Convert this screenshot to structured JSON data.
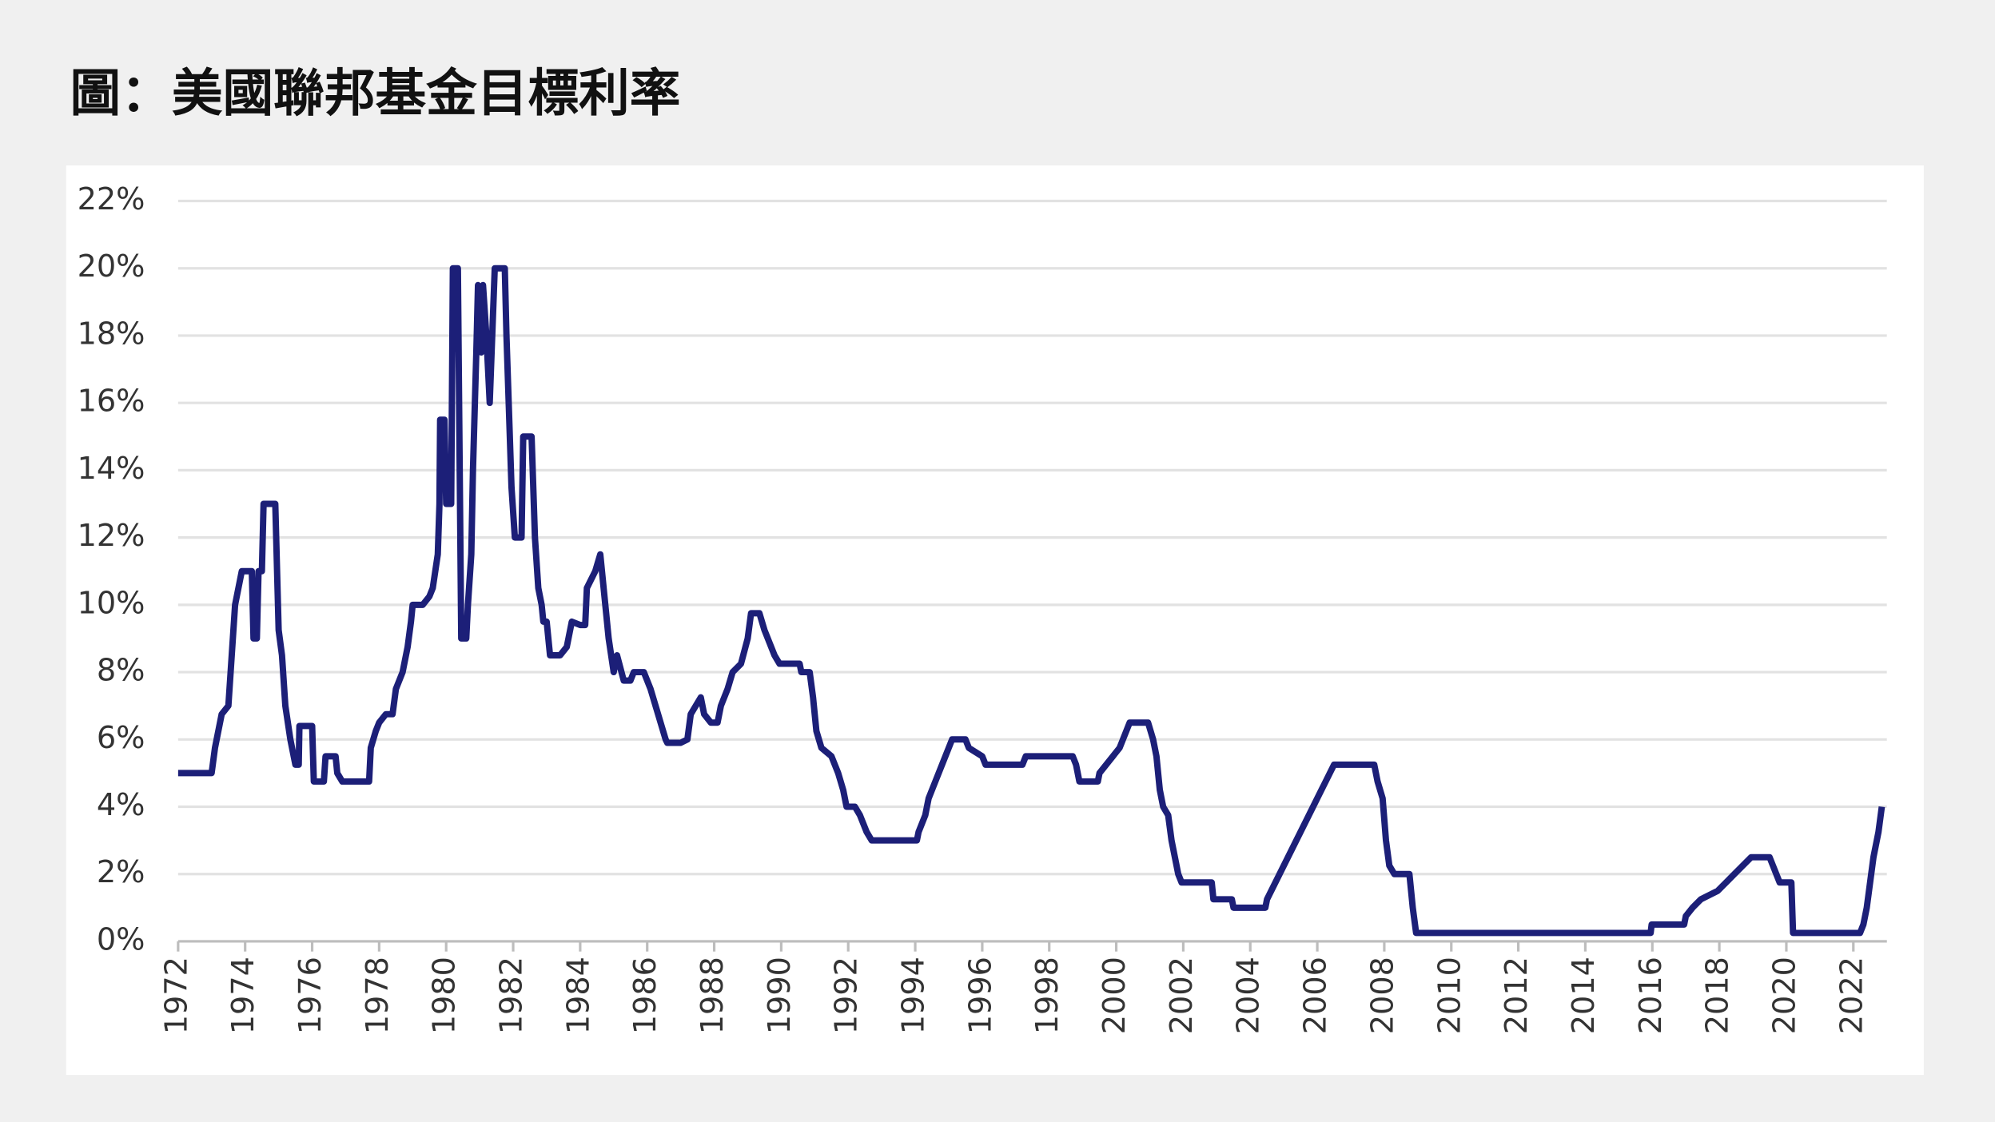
{
  "chart_data": {
    "type": "line",
    "title": "圖：美國聯邦基金目標利率",
    "x": [
      1972,
      1973,
      1973.1,
      1973.3,
      1973.5,
      1973.6,
      1973.7,
      1973.85,
      1973.9,
      1974.2,
      1974.25,
      1974.35,
      1974.4,
      1974.5,
      1974.55,
      1974.9,
      1975.0,
      1975.1,
      1975.2,
      1975.35,
      1975.5,
      1975.6,
      1975.62,
      1976.0,
      1976.05,
      1976.35,
      1976.4,
      1976.7,
      1976.75,
      1976.9,
      1977.7,
      1977.75,
      1977.9,
      1978.0,
      1978.2,
      1978.4,
      1978.5,
      1978.7,
      1978.85,
      1978.95,
      1979.0,
      1979.3,
      1979.5,
      1979.6,
      1979.75,
      1979.8,
      1979.82,
      1979.95,
      1980.0,
      1980.15,
      1980.2,
      1980.35,
      1980.45,
      1980.6,
      1980.65,
      1980.75,
      1980.8,
      1980.9,
      1980.95,
      1981.05,
      1981.1,
      1981.2,
      1981.3,
      1981.45,
      1981.75,
      1981.8,
      1981.95,
      1982.05,
      1982.25,
      1982.3,
      1982.55,
      1982.65,
      1982.75,
      1982.85,
      1982.9,
      1983.0,
      1983.1,
      1983.4,
      1983.6,
      1983.75,
      1984.0,
      1984.15,
      1984.2,
      1984.45,
      1984.6,
      1984.75,
      1984.85,
      1985.0,
      1985.1,
      1985.3,
      1985.5,
      1985.6,
      1985.9,
      1986.1,
      1986.25,
      1986.4,
      1986.55,
      1986.6,
      1987.0,
      1987.2,
      1987.3,
      1987.6,
      1987.7,
      1987.9,
      1988.1,
      1988.2,
      1988.4,
      1988.55,
      1988.8,
      1989.0,
      1989.1,
      1989.35,
      1989.5,
      1989.6,
      1989.8,
      1989.95,
      1990.55,
      1990.6,
      1990.85,
      1990.95,
      1991.05,
      1991.2,
      1991.5,
      1991.7,
      1991.85,
      1991.95,
      1992.2,
      1992.35,
      1992.55,
      1992.7,
      1994.05,
      1994.1,
      1994.3,
      1994.4,
      1994.6,
      1994.9,
      1995.1,
      1995.5,
      1995.6,
      1996.0,
      1996.1,
      1997.2,
      1997.3,
      1998.7,
      1998.8,
      1998.9,
      1999.45,
      1999.5,
      1999.7,
      1999.9,
      2000.1,
      2000.2,
      2000.4,
      2000.95,
      2001.1,
      2001.2,
      2001.3,
      2001.4,
      2001.55,
      2001.65,
      2001.75,
      2001.85,
      2001.95,
      2002.85,
      2002.9,
      2003.45,
      2003.5,
      2004.45,
      2004.5,
      2006.5,
      2007.7,
      2007.8,
      2007.95,
      2008.05,
      2008.15,
      2008.3,
      2008.75,
      2008.8,
      2008.85,
      2008.95,
      2015.95,
      2015.98,
      2016.95,
      2017.0,
      2017.2,
      2017.45,
      2017.95,
      2018.2,
      2018.45,
      2018.7,
      2018.95,
      2019.5,
      2019.6,
      2019.7,
      2019.8,
      2020.15,
      2020.2,
      2022.2,
      2022.3,
      2022.4,
      2022.5,
      2022.6,
      2022.75,
      2022.85
    ],
    "values": [
      5,
      5,
      5.75,
      6.75,
      7,
      8.5,
      10,
      10.75,
      11,
      11,
      9,
      9,
      11,
      11,
      13,
      13,
      9.25,
      8.5,
      7,
      6,
      5.25,
      5.25,
      6.4,
      6.4,
      4.75,
      4.75,
      5.5,
      5.5,
      5,
      4.75,
      4.75,
      5.75,
      6.25,
      6.5,
      6.75,
      6.75,
      7.5,
      8,
      8.75,
      9.5,
      10,
      10,
      10.25,
      10.5,
      11.5,
      13,
      15.5,
      15.5,
      13,
      13,
      20,
      20,
      9,
      9,
      10,
      11.5,
      14,
      17.5,
      19.5,
      17.5,
      19.5,
      18,
      16,
      20,
      20,
      18,
      13.5,
      12,
      12,
      15,
      15,
      12,
      10.5,
      10,
      9.5,
      9.5,
      8.5,
      8.5,
      8.75,
      9.5,
      9.4,
      9.4,
      10.5,
      11,
      11.5,
      10,
      9,
      8,
      8.5,
      7.75,
      7.75,
      8,
      8,
      7.5,
      7,
      6.5,
      6,
      5.9,
      5.9,
      6,
      6.75,
      7.25,
      6.75,
      6.5,
      6.5,
      7,
      7.5,
      8,
      8.25,
      9,
      9.75,
      9.75,
      9.25,
      9,
      8.5,
      8.25,
      8.25,
      8,
      8,
      7.25,
      6.25,
      5.75,
      5.5,
      5,
      4.5,
      4,
      4,
      3.75,
      3.25,
      3,
      3,
      3.25,
      3.75,
      4.25,
      4.75,
      5.5,
      6,
      6,
      5.75,
      5.5,
      5.25,
      5.25,
      5.5,
      5.5,
      5.25,
      4.75,
      4.75,
      5,
      5.25,
      5.5,
      5.75,
      6,
      6.5,
      6.5,
      6,
      5.5,
      4.5,
      4,
      3.75,
      3,
      2.5,
      2,
      1.75,
      1.75,
      1.25,
      1.25,
      1,
      1,
      1.25,
      5.25,
      5.25,
      4.75,
      4.25,
      3,
      2.25,
      2,
      2,
      1.5,
      1,
      0.25,
      0.25,
      0.5,
      0.5,
      0.75,
      1,
      1.25,
      1.5,
      1.75,
      2,
      2.25,
      2.5,
      2.5,
      2.25,
      2,
      1.75,
      1.75,
      0.25,
      0.25,
      0.5,
      1,
      1.75,
      2.5,
      3.25,
      4
    ],
    "color": "#1c1f78",
    "xlim": [
      1972,
      2023
    ],
    "xticks": [
      1972,
      1974,
      1976,
      1978,
      1980,
      1982,
      1984,
      1986,
      1988,
      1990,
      1992,
      1994,
      1996,
      1998,
      2000,
      2002,
      2004,
      2006,
      2008,
      2010,
      2012,
      2014,
      2016,
      2018,
      2020,
      2022
    ],
    "ylim": [
      0,
      22
    ],
    "yticks": [
      {
        "value": 0,
        "label": "0%"
      },
      {
        "value": 2,
        "label": "2%"
      },
      {
        "value": 4,
        "label": "4%"
      },
      {
        "value": 6,
        "label": "6%"
      },
      {
        "value": 8,
        "label": "8%"
      },
      {
        "value": 10,
        "label": "10%"
      },
      {
        "value": 12,
        "label": "12%"
      },
      {
        "value": 14,
        "label": "14%"
      },
      {
        "value": 16,
        "label": "16%"
      },
      {
        "value": 18,
        "label": "18%"
      },
      {
        "value": 20,
        "label": "20%"
      },
      {
        "value": 22,
        "label": "22%"
      }
    ],
    "grid": true
  }
}
